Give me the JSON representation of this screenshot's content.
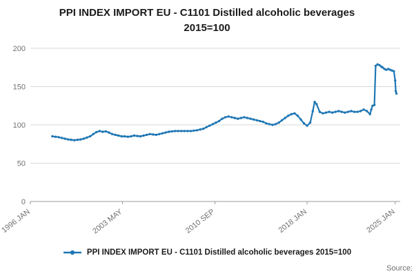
{
  "title": {
    "line1": "PPI INDEX IMPORT EU - C1101 Distilled alcoholic beverages",
    "line2": "2015=100"
  },
  "legend": {
    "label": "PPI INDEX IMPORT EU - C1101 Distilled alcoholic beverages 2015=100"
  },
  "source_label": "Source:",
  "colors": {
    "line": "#1f77b4",
    "grid": "#d9d9d9",
    "axis": "#999999",
    "tick_text": "#707071"
  },
  "chart_data": {
    "type": "line",
    "title": "PPI INDEX IMPORT EU - C1101 Distilled alcoholic beverages 2015=100",
    "xlabel": "",
    "ylabel": "",
    "ylim": [
      0,
      200
    ],
    "yticks": [
      0,
      50,
      100,
      150,
      200
    ],
    "xlim": [
      1996.0,
      2025.4
    ],
    "xticks": [
      {
        "x": 1996.0,
        "label": "1996 JAN"
      },
      {
        "x": 2003.33,
        "label": "2003 MAY"
      },
      {
        "x": 2010.67,
        "label": "2010 SEP"
      },
      {
        "x": 2018.0,
        "label": "2018 JAN"
      },
      {
        "x": 2025.0,
        "label": "2025 JAN"
      }
    ],
    "grid": true,
    "legend_position": "bottom",
    "series": [
      {
        "name": "PPI INDEX IMPORT EU - C1101 Distilled alcoholic beverages 2015=100",
        "points": [
          [
            1997.75,
            85
          ],
          [
            1998,
            84.5
          ],
          [
            1998.25,
            84
          ],
          [
            1998.5,
            83
          ],
          [
            1998.75,
            82
          ],
          [
            1999,
            81
          ],
          [
            1999.25,
            80.5
          ],
          [
            1999.5,
            80
          ],
          [
            1999.75,
            80.5
          ],
          [
            2000,
            81
          ],
          [
            2000.25,
            82
          ],
          [
            2000.5,
            83.5
          ],
          [
            2000.75,
            85
          ],
          [
            2001,
            88
          ],
          [
            2001.25,
            90.5
          ],
          [
            2001.5,
            92
          ],
          [
            2001.75,
            91
          ],
          [
            2002,
            91.5
          ],
          [
            2002.25,
            90
          ],
          [
            2002.5,
            88
          ],
          [
            2002.75,
            87
          ],
          [
            2003,
            86
          ],
          [
            2003.25,
            85
          ],
          [
            2003.5,
            85
          ],
          [
            2003.75,
            84.5
          ],
          [
            2004,
            85
          ],
          [
            2004.25,
            86
          ],
          [
            2004.5,
            85.5
          ],
          [
            2004.75,
            85
          ],
          [
            2005,
            86
          ],
          [
            2005.25,
            87
          ],
          [
            2005.5,
            88
          ],
          [
            2005.75,
            87.5
          ],
          [
            2006,
            87
          ],
          [
            2006.25,
            88
          ],
          [
            2006.5,
            89
          ],
          [
            2006.75,
            90
          ],
          [
            2007,
            91
          ],
          [
            2007.25,
            91.5
          ],
          [
            2007.5,
            92
          ],
          [
            2007.75,
            92
          ],
          [
            2008,
            92
          ],
          [
            2008.25,
            92
          ],
          [
            2008.5,
            92
          ],
          [
            2008.75,
            92
          ],
          [
            2009,
            92.5
          ],
          [
            2009.25,
            93
          ],
          [
            2009.5,
            94
          ],
          [
            2009.75,
            95
          ],
          [
            2010,
            97
          ],
          [
            2010.25,
            99
          ],
          [
            2010.5,
            101
          ],
          [
            2010.75,
            103
          ],
          [
            2011,
            105
          ],
          [
            2011.25,
            108
          ],
          [
            2011.5,
            110
          ],
          [
            2011.75,
            111
          ],
          [
            2012,
            110
          ],
          [
            2012.25,
            109
          ],
          [
            2012.5,
            108
          ],
          [
            2012.75,
            109
          ],
          [
            2013,
            110
          ],
          [
            2013.25,
            109
          ],
          [
            2013.5,
            108
          ],
          [
            2013.75,
            107
          ],
          [
            2014,
            106
          ],
          [
            2014.25,
            105
          ],
          [
            2014.5,
            104
          ],
          [
            2014.75,
            102
          ],
          [
            2015,
            101
          ],
          [
            2015.25,
            100
          ],
          [
            2015.5,
            101
          ],
          [
            2015.75,
            103
          ],
          [
            2016,
            106
          ],
          [
            2016.25,
            109
          ],
          [
            2016.5,
            112
          ],
          [
            2016.75,
            114
          ],
          [
            2017,
            115
          ],
          [
            2017.25,
            112
          ],
          [
            2017.5,
            107
          ],
          [
            2017.75,
            102
          ],
          [
            2018,
            99
          ],
          [
            2018.25,
            103
          ],
          [
            2018.45,
            118
          ],
          [
            2018.6,
            130
          ],
          [
            2018.75,
            127
          ],
          [
            2019,
            117
          ],
          [
            2019.25,
            115
          ],
          [
            2019.5,
            116
          ],
          [
            2019.75,
            117
          ],
          [
            2020,
            116
          ],
          [
            2020.25,
            117
          ],
          [
            2020.5,
            118
          ],
          [
            2020.75,
            117
          ],
          [
            2021,
            116
          ],
          [
            2021.25,
            117
          ],
          [
            2021.5,
            118
          ],
          [
            2021.75,
            117
          ],
          [
            2022,
            117
          ],
          [
            2022.25,
            118
          ],
          [
            2022.5,
            120
          ],
          [
            2022.75,
            118
          ],
          [
            2023,
            114
          ],
          [
            2023.1,
            120
          ],
          [
            2023.2,
            125
          ],
          [
            2023.35,
            126
          ],
          [
            2023.45,
            177
          ],
          [
            2023.6,
            179
          ],
          [
            2023.75,
            178
          ],
          [
            2023.9,
            176
          ],
          [
            2024,
            175
          ],
          [
            2024.15,
            173
          ],
          [
            2024.3,
            172
          ],
          [
            2024.45,
            173
          ],
          [
            2024.6,
            172
          ],
          [
            2024.75,
            171
          ],
          [
            2024.9,
            170
          ],
          [
            2025,
            158
          ],
          [
            2025.05,
            144
          ],
          [
            2025.1,
            141
          ]
        ]
      }
    ]
  }
}
